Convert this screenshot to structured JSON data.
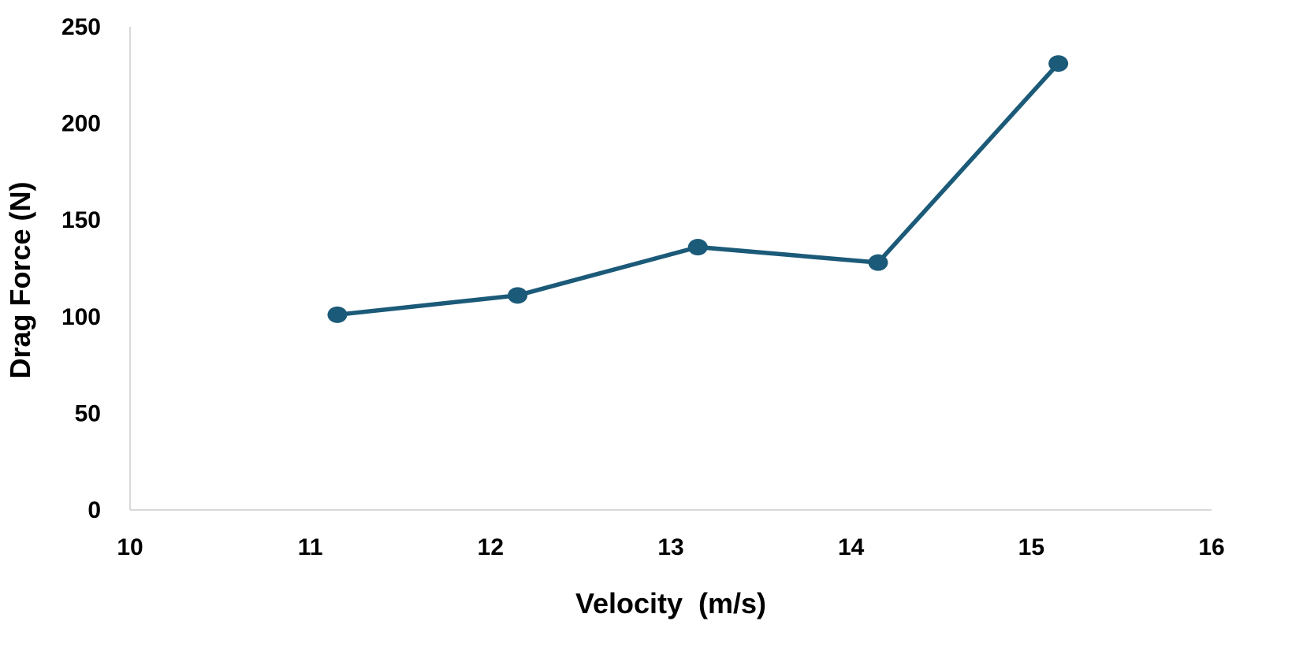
{
  "chart_data": {
    "type": "line",
    "title": "",
    "xlabel": "Velocity  (m/s)",
    "ylabel": "Drag Force (N)",
    "xlim": [
      10,
      16
    ],
    "ylim": [
      0,
      250
    ],
    "x_ticks": [
      "10",
      "11",
      "12",
      "13",
      "14",
      "15",
      "16"
    ],
    "y_ticks": [
      "0",
      "50",
      "100",
      "150",
      "200",
      "250"
    ],
    "grid": false,
    "legend": "none",
    "series": [
      {
        "color": "#1b5a78",
        "x": [
          11.15,
          12.15,
          13.15,
          14.15,
          15.15
        ],
        "y": [
          101,
          111,
          136,
          128,
          231
        ]
      }
    ]
  }
}
